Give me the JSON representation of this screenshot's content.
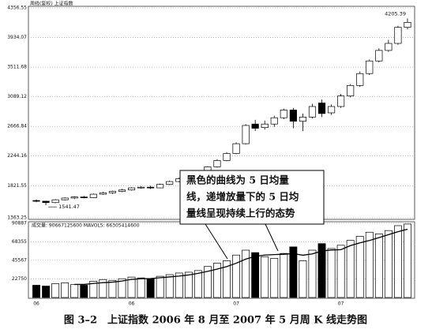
{
  "chart_data": [
    {
      "type": "candlestick",
      "title": "周线(复权) 上证指数",
      "categories": [
        "06",
        null,
        null,
        null,
        null,
        null,
        null,
        null,
        null,
        null,
        "06",
        null,
        null,
        null,
        null,
        null,
        null,
        null,
        null,
        null,
        null,
        "07",
        null,
        null,
        null,
        null,
        null,
        null,
        null,
        null,
        null,
        null,
        "07",
        null,
        null,
        null,
        null,
        null,
        null,
        null
      ],
      "open": [
        1610,
        1600,
        1580,
        1620,
        1645,
        1660,
        1650,
        1700,
        1720,
        1740,
        1760,
        1790,
        1800,
        1790,
        1840,
        1880,
        1920,
        1960,
        2000,
        2090,
        2180,
        2280,
        2420,
        2700,
        2650,
        2700,
        2790,
        2900,
        2740,
        2800,
        3000,
        2860,
        2950,
        3100,
        3250,
        3420,
        3600,
        3750,
        3850,
        4080
      ],
      "close": [
        1600,
        1580,
        1620,
        1645,
        1660,
        1650,
        1700,
        1720,
        1740,
        1760,
        1790,
        1800,
        1790,
        1840,
        1880,
        1920,
        1960,
        2000,
        2090,
        2180,
        2280,
        2420,
        2680,
        2640,
        2700,
        2790,
        2900,
        2740,
        2800,
        2950,
        2850,
        2950,
        3100,
        3250,
        3420,
        3600,
        3750,
        3850,
        4080,
        4150
      ],
      "high": [
        1625,
        1605,
        1630,
        1655,
        1670,
        1675,
        1710,
        1735,
        1750,
        1775,
        1800,
        1815,
        1820,
        1850,
        1895,
        1935,
        1980,
        2020,
        2100,
        2200,
        2300,
        2440,
        2700,
        2760,
        2750,
        2820,
        2920,
        2930,
        2850,
        2990,
        3050,
        2980,
        3130,
        3270,
        3450,
        3620,
        3780,
        3900,
        4100,
        4205.39
      ],
      "low": [
        1585,
        1541.47,
        1570,
        1610,
        1630,
        1640,
        1645,
        1690,
        1705,
        1730,
        1750,
        1780,
        1775,
        1785,
        1830,
        1870,
        1910,
        1950,
        1990,
        2080,
        2170,
        2270,
        2410,
        2600,
        2620,
        2660,
        2770,
        2640,
        2600,
        2780,
        2800,
        2830,
        2930,
        3080,
        3230,
        3400,
        3580,
        3730,
        3830,
        4050
      ],
      "ylim": [
        1363.25,
        4356.55
      ],
      "yticks": [
        1363.25,
        1821.55,
        2244.16,
        2666.84,
        3089.12,
        3511.68,
        3934.07,
        4356.55
      ],
      "grid": true
    },
    {
      "type": "volume",
      "title": "成交量: 90667125600 MAVOL5: 66305414600",
      "values": [
        15000,
        14000,
        17000,
        18000,
        16000,
        15000,
        20000,
        22000,
        21000,
        23000,
        25000,
        24000,
        23000,
        26000,
        28000,
        30000,
        31000,
        33000,
        38000,
        42000,
        45000,
        52000,
        58000,
        55000,
        50000,
        48000,
        54000,
        62000,
        45000,
        58000,
        66000,
        60000,
        64000,
        70000,
        75000,
        80000,
        78000,
        82000,
        88000,
        90000
      ],
      "ma5": [
        null,
        null,
        null,
        null,
        16000,
        16000,
        17200,
        18200,
        18800,
        20200,
        22200,
        23000,
        23200,
        24200,
        25200,
        26200,
        27600,
        29600,
        32000,
        34800,
        37800,
        42000,
        47000,
        50400,
        52000,
        52600,
        53000,
        53800,
        51800,
        53400,
        57000,
        58200,
        58600,
        63600,
        67000,
        69800,
        73400,
        77000,
        80600,
        83600
      ],
      "ylim": [
        0,
        90887
      ],
      "yticks": [
        22750,
        45567,
        68355,
        90887
      ],
      "grid": true
    }
  ],
  "callout": [
    "黑色的曲线为 5 日均量",
    "线，递增放量下的 5 日均",
    "量线呈现持续上行的态势"
  ],
  "caption": "图 3–2　上证指数 2006 年 8 月至 2007 年 5 月周 K 线走势图"
}
